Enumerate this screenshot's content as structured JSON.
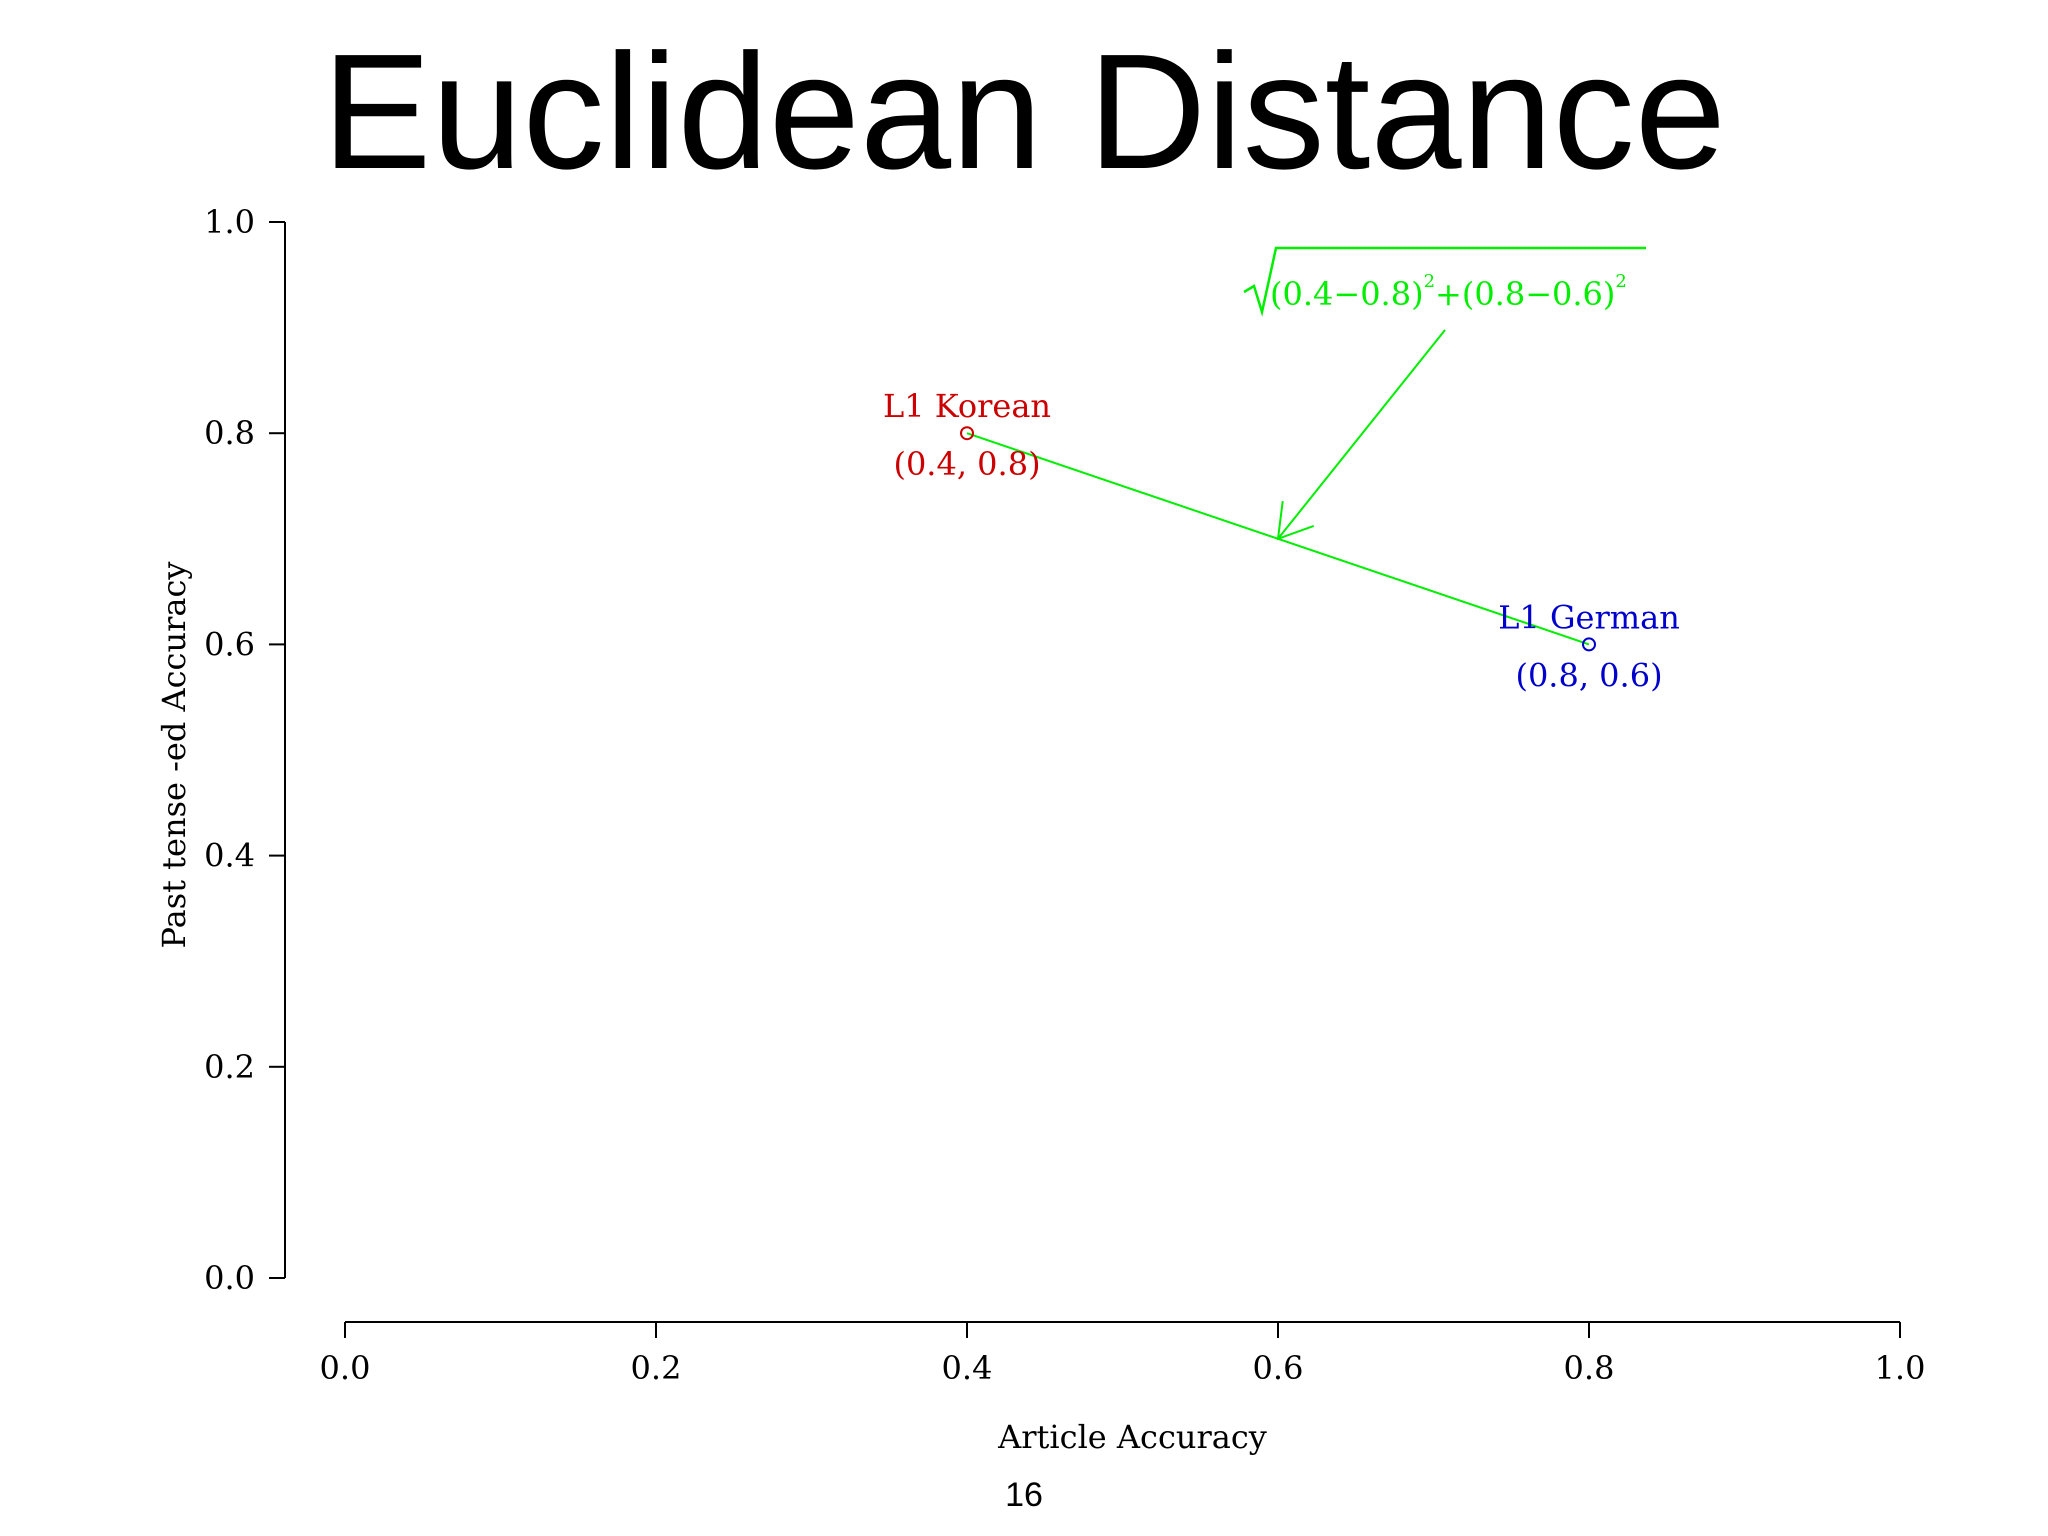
{
  "slide": {
    "title": "Euclidean Distance",
    "page_number": "16"
  },
  "chart_data": {
    "type": "scatter",
    "xlabel": "Article Accuracy",
    "ylabel": "Past tense -ed Accuracy",
    "xlim": [
      0.0,
      1.0
    ],
    "ylim": [
      0.0,
      1.0
    ],
    "x_ticks": [
      0.0,
      0.2,
      0.4,
      0.6,
      0.8,
      1.0
    ],
    "y_ticks": [
      0.0,
      0.2,
      0.4,
      0.6,
      0.8,
      1.0
    ],
    "x_tick_labels": [
      "0.0",
      "0.2",
      "0.4",
      "0.6",
      "0.8",
      "1.0"
    ],
    "y_tick_labels": [
      "0.0",
      "0.2",
      "0.4",
      "0.6",
      "0.8",
      "1.0"
    ],
    "grid": false,
    "points": [
      {
        "x": 0.4,
        "y": 0.8,
        "label": "L1 Korean",
        "coord_label": "(0.4, 0.8)",
        "color": "#cc0000"
      },
      {
        "x": 0.8,
        "y": 0.6,
        "label": "L1 German",
        "coord_label": "(0.8, 0.6)",
        "color": "#0000cc"
      }
    ],
    "annotation": {
      "color": "#00ee00",
      "formula_parts": [
        "(0.4−0.8)",
        "2",
        "+(0.8−0.6)",
        "2"
      ],
      "segment": {
        "from": [
          0.4,
          0.8
        ],
        "to": [
          0.8,
          0.6
        ]
      },
      "arrow_target": [
        0.6,
        0.7
      ]
    }
  }
}
